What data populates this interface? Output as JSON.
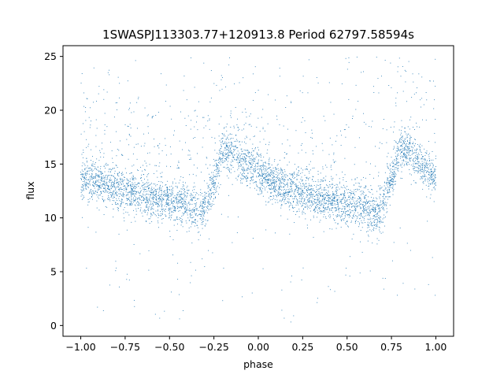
{
  "chart_data": {
    "type": "scatter",
    "title": "1SWASPJ113303.77+120913.8 Period 62797.58594s",
    "xlabel": "phase",
    "ylabel": "flux",
    "xlim": [
      -1.1,
      1.1
    ],
    "ylim": [
      -1.0,
      26.0
    ],
    "xticks": [
      -1.0,
      -0.75,
      -0.5,
      -0.25,
      0.0,
      0.25,
      0.5,
      0.75,
      1.0
    ],
    "xtick_labels": [
      "−1.00",
      "−0.75",
      "−0.50",
      "−0.25",
      "0.00",
      "0.25",
      "0.50",
      "0.75",
      "1.00"
    ],
    "yticks": [
      0,
      5,
      10,
      15,
      20,
      25
    ],
    "ytick_labels": [
      "0",
      "5",
      "10",
      "15",
      "20",
      "25"
    ],
    "grid": false,
    "legend": "none",
    "point_color": "#1f77b4",
    "light_curve_profile": {
      "phase": [
        -1.0,
        -0.9,
        -0.8,
        -0.7,
        -0.6,
        -0.5,
        -0.4,
        -0.33,
        -0.25,
        -0.2,
        -0.15,
        -0.1,
        0.0,
        0.1,
        0.2,
        0.3,
        0.4,
        0.5,
        0.6,
        0.67,
        0.75,
        0.8,
        0.85,
        0.9,
        1.0
      ],
      "flux": [
        13.8,
        13.3,
        12.7,
        12.3,
        11.9,
        11.6,
        11.2,
        10.2,
        13.2,
        16.5,
        16.2,
        15.2,
        14.3,
        13.2,
        12.5,
        12.0,
        11.6,
        11.3,
        11.1,
        10.2,
        13.5,
        16.5,
        16.2,
        15.0,
        13.8
      ]
    },
    "scatter_band_halfwidth": 1.3,
    "outlier_range": [
      0.3,
      25.0
    ]
  }
}
